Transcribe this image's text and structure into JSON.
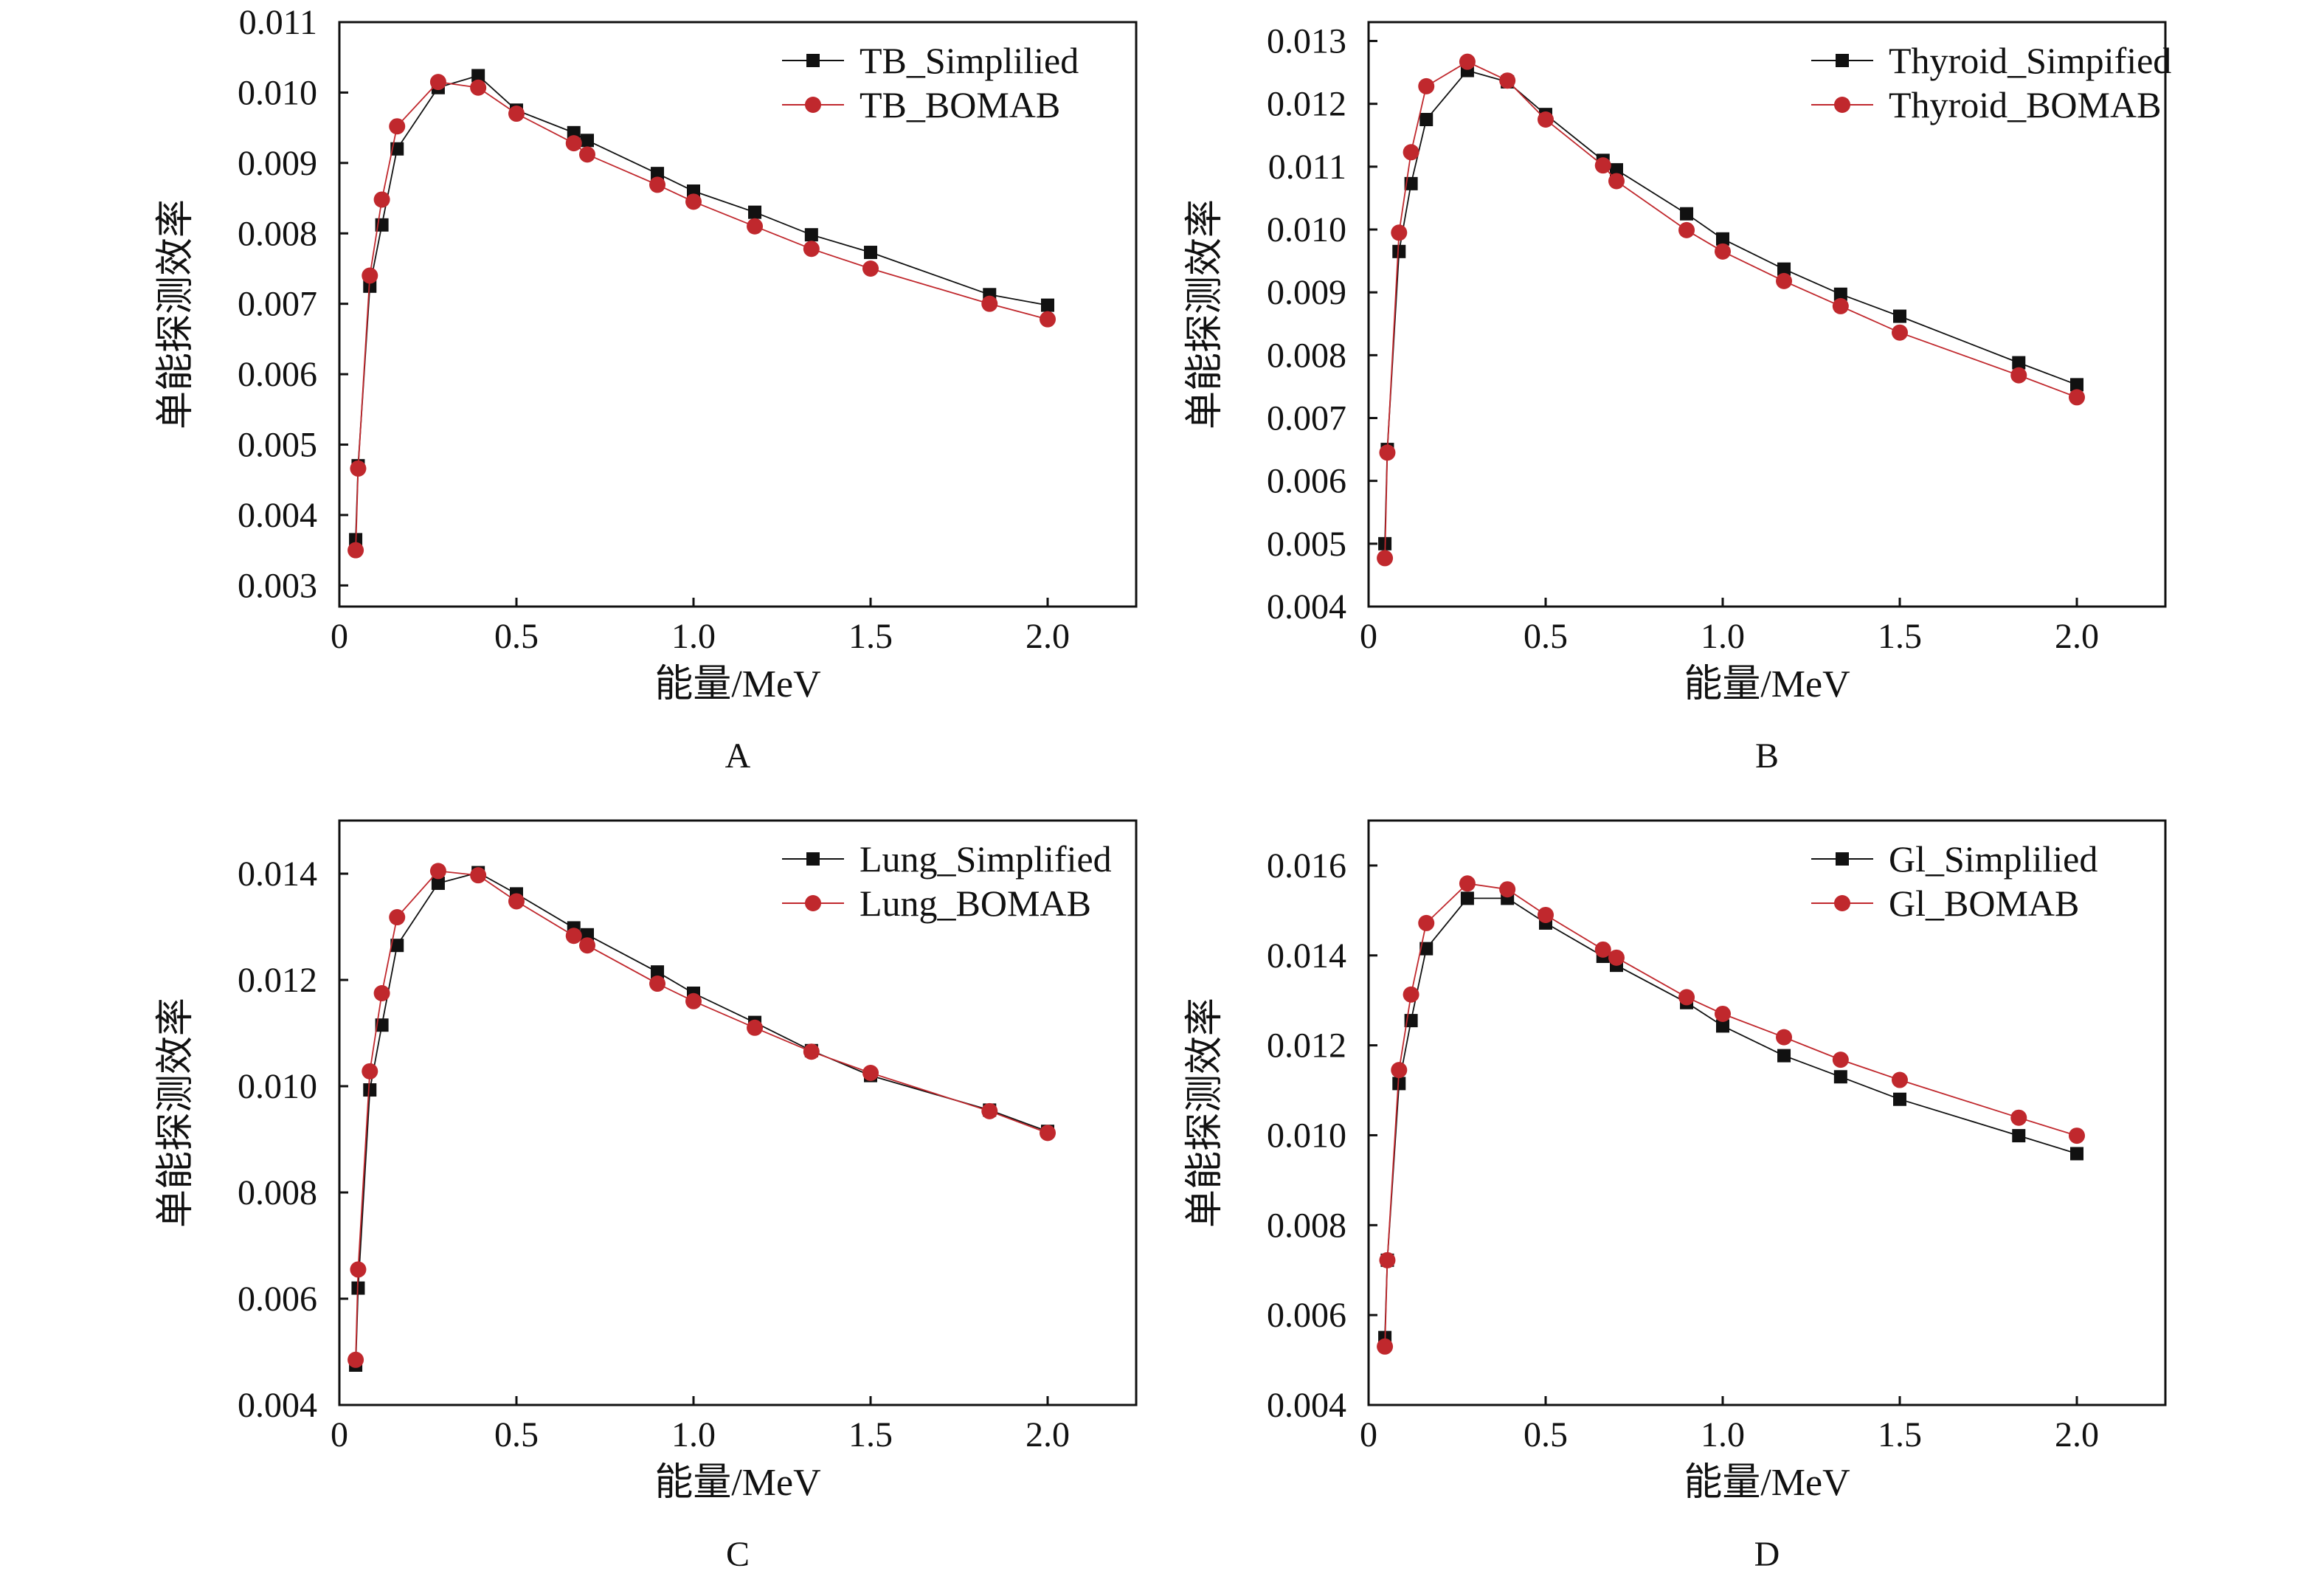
{
  "figure": {
    "x_axis_label": "能量/MeV",
    "y_axis_label": "单能探测效率"
  },
  "colors": {
    "simplified": "#111111",
    "bomab": "#c0282d",
    "axis": "#111111"
  },
  "chart_data": [
    {
      "type": "line",
      "panel_label": "A",
      "xlabel": "能量/MeV",
      "ylabel": "单能探测效率",
      "xlim": [
        0,
        2.25
      ],
      "ylim": [
        0.0027,
        0.011
      ],
      "xticks": [
        0,
        0.5,
        1.0,
        1.5,
        2.0
      ],
      "xtick_labels": [
        "0",
        "0.5",
        "1.0",
        "1.5",
        "2.0"
      ],
      "yticks": [
        0.003,
        0.004,
        0.005,
        0.006,
        0.007,
        0.008,
        0.009,
        0.01,
        0.011
      ],
      "ytick_labels": [
        "0.003",
        "0.004",
        "0.005",
        "0.006",
        "0.007",
        "0.008",
        "0.009",
        "0.010",
        "0.011"
      ],
      "legend_position": "top-right",
      "series": [
        {
          "name": "TB_Simplilied",
          "marker": "square",
          "x": [
            0.046,
            0.053,
            0.086,
            0.12,
            0.163,
            0.279,
            0.392,
            0.5,
            0.662,
            0.7,
            0.898,
            1.0,
            1.173,
            1.333,
            1.5,
            1.836,
            2.0
          ],
          "y": [
            0.00365,
            0.0047,
            0.00725,
            0.00812,
            0.0092,
            0.01007,
            0.01024,
            0.00975,
            0.00943,
            0.00932,
            0.00885,
            0.0086,
            0.0083,
            0.00798,
            0.00773,
            0.00713,
            0.00698
          ]
        },
        {
          "name": "TB_BOMAB",
          "marker": "circle",
          "x": [
            0.046,
            0.053,
            0.086,
            0.12,
            0.163,
            0.279,
            0.392,
            0.5,
            0.662,
            0.7,
            0.898,
            1.0,
            1.173,
            1.333,
            1.5,
            1.836,
            2.0
          ],
          "y": [
            0.0035,
            0.00466,
            0.0074,
            0.00848,
            0.00952,
            0.01015,
            0.01007,
            0.0097,
            0.00928,
            0.00912,
            0.00869,
            0.00845,
            0.0081,
            0.00778,
            0.0075,
            0.007,
            0.00678
          ]
        }
      ]
    },
    {
      "type": "line",
      "panel_label": "B",
      "xlabel": "能量/MeV",
      "ylabel": "单能探测效率",
      "xlim": [
        0,
        2.25
      ],
      "ylim": [
        0.004,
        0.0133
      ],
      "xticks": [
        0,
        0.5,
        1.0,
        1.5,
        2.0
      ],
      "xtick_labels": [
        "0",
        "0.5",
        "1.0",
        "1.5",
        "2.0"
      ],
      "yticks": [
        0.004,
        0.005,
        0.006,
        0.007,
        0.008,
        0.009,
        0.01,
        0.011,
        0.012,
        0.013
      ],
      "ytick_labels": [
        "0.004",
        "0.005",
        "0.006",
        "0.007",
        "0.008",
        "0.009",
        "0.010",
        "0.011",
        "0.012",
        "0.013"
      ],
      "legend_position": "top-right",
      "series": [
        {
          "name": "Thyroid_Simpified",
          "marker": "square",
          "x": [
            0.046,
            0.053,
            0.086,
            0.12,
            0.163,
            0.279,
            0.392,
            0.5,
            0.662,
            0.7,
            0.898,
            1.0,
            1.173,
            1.333,
            1.5,
            1.836,
            2.0
          ],
          "y": [
            0.005,
            0.0065,
            0.00965,
            0.01073,
            0.01175,
            0.01253,
            0.01235,
            0.01183,
            0.0111,
            0.01095,
            0.01025,
            0.00985,
            0.00937,
            0.00897,
            0.00862,
            0.00788,
            0.00753
          ]
        },
        {
          "name": "Thyroid_BOMAB",
          "marker": "circle",
          "x": [
            0.046,
            0.053,
            0.086,
            0.12,
            0.163,
            0.279,
            0.392,
            0.5,
            0.662,
            0.7,
            0.898,
            1.0,
            1.173,
            1.333,
            1.5,
            1.836,
            2.0
          ],
          "y": [
            0.00477,
            0.00645,
            0.00995,
            0.01123,
            0.01228,
            0.01267,
            0.01237,
            0.01175,
            0.01102,
            0.01077,
            0.00999,
            0.00965,
            0.00918,
            0.00878,
            0.00836,
            0.00768,
            0.00733
          ]
        }
      ]
    },
    {
      "type": "line",
      "panel_label": "C",
      "xlabel": "能量/MeV",
      "ylabel": "单能探测效率",
      "xlim": [
        0,
        2.25
      ],
      "ylim": [
        0.004,
        0.015
      ],
      "xticks": [
        0,
        0.5,
        1.0,
        1.5,
        2.0
      ],
      "xtick_labels": [
        "0",
        "0.5",
        "1.0",
        "1.5",
        "2.0"
      ],
      "yticks": [
        0.004,
        0.006,
        0.008,
        0.01,
        0.012,
        0.014
      ],
      "ytick_labels": [
        "0.004",
        "0.006",
        "0.008",
        "0.010",
        "0.012",
        "0.014"
      ],
      "legend_position": "top-right",
      "series": [
        {
          "name": "Lung_Simplified",
          "marker": "square",
          "x": [
            0.046,
            0.053,
            0.086,
            0.12,
            0.163,
            0.279,
            0.392,
            0.5,
            0.662,
            0.7,
            0.898,
            1.0,
            1.173,
            1.333,
            1.5,
            1.836,
            2.0
          ],
          "y": [
            0.00475,
            0.0062,
            0.00993,
            0.01115,
            0.01265,
            0.01382,
            0.01402,
            0.01362,
            0.01298,
            0.01285,
            0.01215,
            0.01175,
            0.0112,
            0.01067,
            0.0102,
            0.00955,
            0.00915
          ]
        },
        {
          "name": "Lung_BOMAB",
          "marker": "circle",
          "x": [
            0.046,
            0.053,
            0.086,
            0.12,
            0.163,
            0.279,
            0.392,
            0.5,
            0.662,
            0.7,
            0.898,
            1.0,
            1.173,
            1.333,
            1.5,
            1.836,
            2.0
          ],
          "y": [
            0.00485,
            0.00655,
            0.01028,
            0.01175,
            0.01318,
            0.01405,
            0.01397,
            0.01348,
            0.01283,
            0.01265,
            0.01193,
            0.0116,
            0.0111,
            0.01065,
            0.01025,
            0.00953,
            0.00912
          ]
        }
      ]
    },
    {
      "type": "line",
      "panel_label": "D",
      "xlabel": "能量/MeV",
      "ylabel": "单能探测效率",
      "xlim": [
        0,
        2.25
      ],
      "ylim": [
        0.004,
        0.017
      ],
      "xticks": [
        0,
        0.5,
        1.0,
        1.5,
        2.0
      ],
      "xtick_labels": [
        "0",
        "0.5",
        "1.0",
        "1.5",
        "2.0"
      ],
      "yticks": [
        0.004,
        0.006,
        0.008,
        0.01,
        0.012,
        0.014,
        0.016
      ],
      "ytick_labels": [
        "0.004",
        "0.006",
        "0.008",
        "0.010",
        "0.012",
        "0.014",
        "0.016"
      ],
      "legend_position": "top-right",
      "series": [
        {
          "name": "Gl_Simplilied",
          "marker": "square",
          "x": [
            0.046,
            0.053,
            0.086,
            0.12,
            0.163,
            0.279,
            0.392,
            0.5,
            0.662,
            0.7,
            0.898,
            1.0,
            1.173,
            1.333,
            1.5,
            1.836,
            2.0
          ],
          "y": [
            0.0055,
            0.00722,
            0.01115,
            0.01255,
            0.01415,
            0.01527,
            0.01527,
            0.01472,
            0.01398,
            0.01378,
            0.01295,
            0.01243,
            0.01177,
            0.0113,
            0.0108,
            0.00999,
            0.00959
          ]
        },
        {
          "name": "Gl_BOMAB",
          "marker": "circle",
          "x": [
            0.046,
            0.053,
            0.086,
            0.12,
            0.163,
            0.279,
            0.392,
            0.5,
            0.662,
            0.7,
            0.898,
            1.0,
            1.173,
            1.333,
            1.5,
            1.836,
            2.0
          ],
          "y": [
            0.0053,
            0.00722,
            0.01145,
            0.01313,
            0.01472,
            0.0156,
            0.01547,
            0.0149,
            0.01413,
            0.01395,
            0.01307,
            0.0127,
            0.01218,
            0.01168,
            0.01123,
            0.01039,
            0.00999
          ]
        }
      ]
    }
  ]
}
